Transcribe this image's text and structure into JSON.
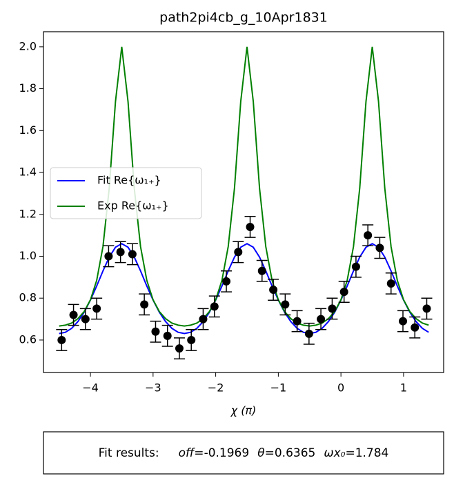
{
  "chart_data": {
    "type": "errorbar-line",
    "title": "path2pi4cb_g_10Apr1831",
    "xlabel": "χ (π)",
    "xlim": [
      -4.75,
      1.64
    ],
    "ylim": [
      0.445,
      2.072
    ],
    "xticks": [
      {
        "value": -4,
        "label": "−4"
      },
      {
        "value": -3,
        "label": "−3"
      },
      {
        "value": -2,
        "label": "−2"
      },
      {
        "value": -1,
        "label": "−1"
      },
      0,
      1
    ],
    "yticks": [
      0.6,
      0.8,
      {
        "value": 1,
        "label": "1.0"
      },
      1.2,
      1.4,
      1.6,
      1.8,
      {
        "value": 2,
        "label": "2.0"
      }
    ],
    "legend": "center left",
    "lines": [
      {
        "name": "Fit Re{ω₁₊}",
        "color": "#0000ff",
        "x": [
          -4.5,
          -4.4,
          -4.3,
          -4.2,
          -4.1,
          -4.0,
          -3.9,
          -3.8,
          -3.7,
          -3.6,
          -3.5,
          -3.4,
          -3.3,
          -3.2,
          -3.1,
          -3.0,
          -2.9,
          -2.8,
          -2.7,
          -2.6,
          -2.5,
          -2.4,
          -2.3,
          -2.2,
          -2.1,
          -2.0,
          -1.9,
          -1.8,
          -1.7,
          -1.6,
          -1.5,
          -1.4,
          -1.3,
          -1.2,
          -1.1,
          -1.0,
          -0.9,
          -0.8,
          -0.7,
          -0.6,
          -0.5,
          -0.4,
          -0.3,
          -0.2,
          -0.1,
          0.0,
          0.1,
          0.2,
          0.3,
          0.4,
          0.5,
          0.6,
          0.7,
          0.8,
          0.9,
          1.0,
          1.1,
          1.2,
          1.3,
          1.4
        ],
        "values": [
          0.631,
          0.637,
          0.656,
          0.688,
          0.733,
          0.791,
          0.858,
          0.93,
          0.996,
          1.043,
          1.06,
          1.043,
          0.996,
          0.93,
          0.858,
          0.791,
          0.733,
          0.688,
          0.656,
          0.637,
          0.631,
          0.637,
          0.656,
          0.688,
          0.733,
          0.791,
          0.858,
          0.93,
          0.996,
          1.043,
          1.06,
          1.043,
          0.996,
          0.93,
          0.858,
          0.791,
          0.733,
          0.688,
          0.656,
          0.637,
          0.631,
          0.637,
          0.656,
          0.688,
          0.733,
          0.791,
          0.858,
          0.93,
          0.996,
          1.043,
          1.06,
          1.043,
          0.996,
          0.93,
          0.858,
          0.791,
          0.733,
          0.688,
          0.656,
          0.637
        ]
      },
      {
        "name": "Exp Re{ω₁₊}",
        "color": "#008000",
        "x": [
          -4.5,
          -4.4,
          -4.3,
          -4.2,
          -4.1,
          -4.0,
          -3.9,
          -3.8,
          -3.7,
          -3.6,
          -3.5,
          -3.4,
          -3.3,
          -3.2,
          -3.1,
          -3.0,
          -2.9,
          -2.8,
          -2.7,
          -2.6,
          -2.5,
          -2.4,
          -2.3,
          -2.2,
          -2.1,
          -2.0,
          -1.9,
          -1.8,
          -1.7,
          -1.6,
          -1.5,
          -1.4,
          -1.3,
          -1.2,
          -1.1,
          -1.0,
          -0.9,
          -0.8,
          -0.7,
          -0.6,
          -0.5,
          -0.4,
          -0.3,
          -0.2,
          -0.1,
          0.0,
          0.1,
          0.2,
          0.3,
          0.4,
          0.5,
          0.6,
          0.7,
          0.8,
          0.9,
          1.0,
          1.1,
          1.2,
          1.3,
          1.4
        ],
        "values": [
          0.667,
          0.671,
          0.681,
          0.702,
          0.736,
          0.792,
          0.885,
          1.046,
          1.325,
          1.739,
          2.0,
          1.739,
          1.325,
          1.046,
          0.885,
          0.792,
          0.736,
          0.702,
          0.681,
          0.671,
          0.667,
          0.671,
          0.681,
          0.702,
          0.736,
          0.792,
          0.885,
          1.046,
          1.325,
          1.739,
          2.0,
          1.739,
          1.325,
          1.046,
          0.885,
          0.792,
          0.736,
          0.702,
          0.681,
          0.671,
          0.667,
          0.671,
          0.681,
          0.702,
          0.736,
          0.792,
          0.885,
          1.046,
          1.325,
          1.739,
          2.0,
          1.739,
          1.325,
          1.046,
          0.885,
          0.792,
          0.736,
          0.702,
          0.681,
          0.671
        ]
      }
    ],
    "points": {
      "color": "#000000",
      "x": [
        -4.46,
        -4.27,
        -4.08,
        -3.9,
        -3.71,
        -3.52,
        -3.33,
        -3.14,
        -2.96,
        -2.77,
        -2.58,
        -2.39,
        -2.2,
        -2.02,
        -1.83,
        -1.64,
        -1.45,
        -1.26,
        -1.08,
        -0.89,
        -0.7,
        -0.51,
        -0.32,
        -0.14,
        0.05,
        0.24,
        0.43,
        0.62,
        0.8,
        0.99,
        1.18,
        1.37
      ],
      "values": [
        0.6,
        0.72,
        0.7,
        0.75,
        1.0,
        1.02,
        1.01,
        0.77,
        0.64,
        0.62,
        0.56,
        0.6,
        0.7,
        0.76,
        0.88,
        1.02,
        1.14,
        0.93,
        0.84,
        0.77,
        0.69,
        0.63,
        0.7,
        0.75,
        0.83,
        0.95,
        1.1,
        1.04,
        0.87,
        0.69,
        0.66,
        0.75
      ],
      "errors": [
        0.05,
        0.05,
        0.05,
        0.05,
        0.05,
        0.05,
        0.05,
        0.05,
        0.05,
        0.05,
        0.05,
        0.05,
        0.05,
        0.05,
        0.05,
        0.05,
        0.05,
        0.05,
        0.05,
        0.05,
        0.05,
        0.05,
        0.05,
        0.05,
        0.05,
        0.05,
        0.05,
        0.05,
        0.05,
        0.05,
        0.05,
        0.05
      ]
    }
  },
  "fit_results": {
    "label": "Fit results:",
    "params": [
      {
        "name": "off=",
        "value": -0.1969
      },
      {
        "name": "θ=",
        "value": 0.6365
      },
      {
        "name": "ωx₀=",
        "value": 1.784
      }
    ]
  }
}
